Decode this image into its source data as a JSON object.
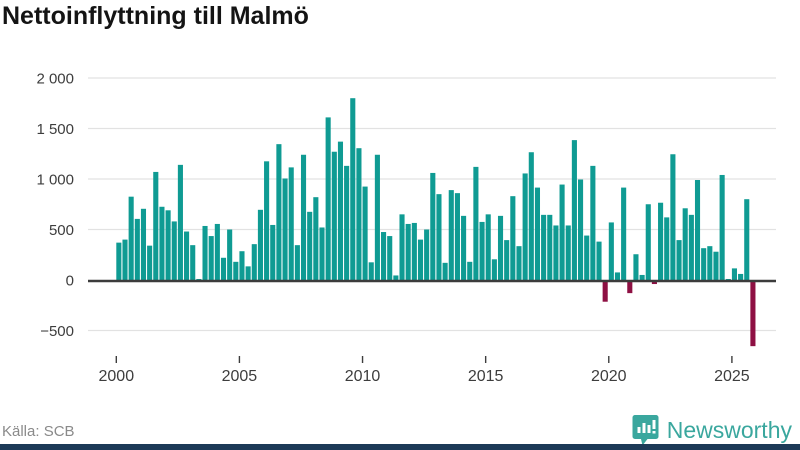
{
  "title": "Nettoinflyttning till Malmö",
  "footer": {
    "source": "Källa: SCB",
    "logo_text": "Newsworthy"
  },
  "colors": {
    "positive": "#0f9b93",
    "negative": "#8e1043",
    "grid": "#e2e2e2",
    "zero_line": "#3c3c3c",
    "axis_text": "#3d3d3d",
    "source_text": "#8a8a8a",
    "logo_teal": "#3aa79e",
    "bottom_bar": "#1d3a57",
    "title_text": "#141414"
  },
  "chart_data": {
    "type": "bar",
    "title": "Nettoinflyttning till Malmö",
    "period": "quarterly",
    "start_year": 2000,
    "values_per_year": 4,
    "values": [
      370,
      400,
      825,
      605,
      705,
      340,
      1070,
      725,
      690,
      580,
      1140,
      480,
      345,
      10,
      535,
      435,
      555,
      220,
      500,
      180,
      285,
      135,
      355,
      695,
      1175,
      545,
      1345,
      1005,
      1115,
      345,
      1240,
      675,
      820,
      520,
      1610,
      1270,
      1370,
      1130,
      1800,
      1305,
      925,
      175,
      1240,
      475,
      435,
      45,
      650,
      555,
      565,
      400,
      500,
      1060,
      850,
      170,
      890,
      860,
      635,
      180,
      1120,
      575,
      650,
      205,
      635,
      395,
      830,
      335,
      1055,
      1265,
      915,
      645,
      645,
      540,
      945,
      540,
      1385,
      995,
      440,
      1130,
      380,
      -215,
      570,
      75,
      915,
      -130,
      255,
      50,
      750,
      -40,
      765,
      620,
      1245,
      395,
      710,
      645,
      990,
      315,
      335,
      280,
      1040,
      10,
      115,
      60,
      800,
      -655
    ],
    "x_tick_years": [
      2000,
      2005,
      2010,
      2015,
      2020,
      2025
    ],
    "y_ticks": [
      {
        "value": 2000,
        "label": "2 000"
      },
      {
        "value": 1500,
        "label": "1 500"
      },
      {
        "value": 1000,
        "label": "1 000"
      },
      {
        "value": 500,
        "label": "500"
      },
      {
        "value": 0,
        "label": "0"
      },
      {
        "value": -500,
        "label": "−500"
      }
    ],
    "ylim": [
      -700,
      2100
    ],
    "grid": true,
    "legend": "none",
    "xlabel": "",
    "ylabel": ""
  }
}
